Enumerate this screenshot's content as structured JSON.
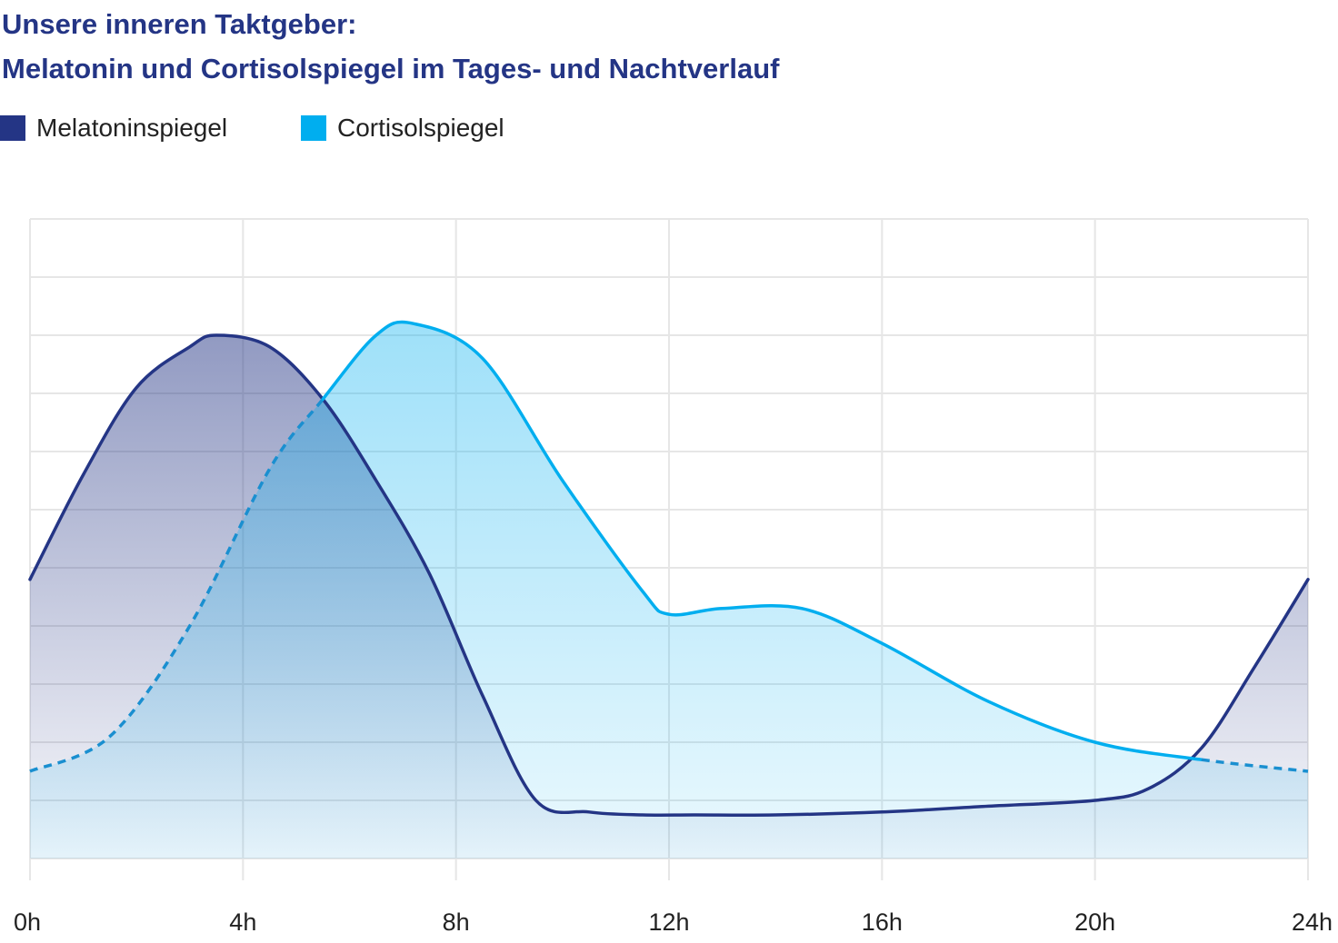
{
  "title": {
    "line1": "Unsere inneren Taktgeber:",
    "line2": "Melatonin und Cortisolspiegel im Tages- und Nachtverlauf"
  },
  "legend": [
    {
      "label": "Melatoninspiegel",
      "color": "#243585"
    },
    {
      "label": "Cortisolspiegel",
      "color": "#00aeef"
    }
  ],
  "chart_data": {
    "type": "area",
    "title": "Unsere inneren Taktgeber: Melatonin und Cortisolspiegel im Tages- und Nachtverlauf",
    "xlabel": "",
    "ylabel": "",
    "x_ticks": [
      "0h",
      "4h",
      "8h",
      "12h",
      "16h",
      "20h",
      "24h"
    ],
    "xlim": [
      0,
      24
    ],
    "ylim": [
      0,
      11
    ],
    "y_axis_labels_shown": false,
    "grid": true,
    "legend_position": "top-left",
    "series": [
      {
        "name": "Melatoninspiegel",
        "color": "#243585",
        "x": [
          0,
          1,
          2,
          3,
          3.5,
          4.5,
          5.5,
          6.5,
          7.5,
          8.5,
          9.5,
          10.5,
          11.5,
          12.5,
          14,
          16,
          18,
          20,
          21,
          22,
          23,
          24
        ],
        "y": [
          4.8,
          6.6,
          8.1,
          8.8,
          9.0,
          8.8,
          7.9,
          6.5,
          4.9,
          2.8,
          1.0,
          0.8,
          0.75,
          0.75,
          0.75,
          0.8,
          0.9,
          1.0,
          1.2,
          1.9,
          3.3,
          4.8
        ]
      },
      {
        "name": "Cortisolspiegel",
        "color": "#00aeef",
        "x": [
          0,
          1.5,
          3,
          4.5,
          5.5,
          6.5,
          7.2,
          8.5,
          10,
          11.5,
          12,
          13,
          14.5,
          16,
          18,
          20,
          22,
          24
        ],
        "y": [
          1.5,
          2.1,
          4.0,
          6.7,
          7.9,
          9.0,
          9.2,
          8.6,
          6.5,
          4.6,
          4.2,
          4.3,
          4.3,
          3.7,
          2.7,
          2.0,
          1.7,
          1.5
        ],
        "dashed_ranges": [
          [
            0,
            5.5
          ],
          [
            22,
            24
          ]
        ]
      }
    ]
  }
}
